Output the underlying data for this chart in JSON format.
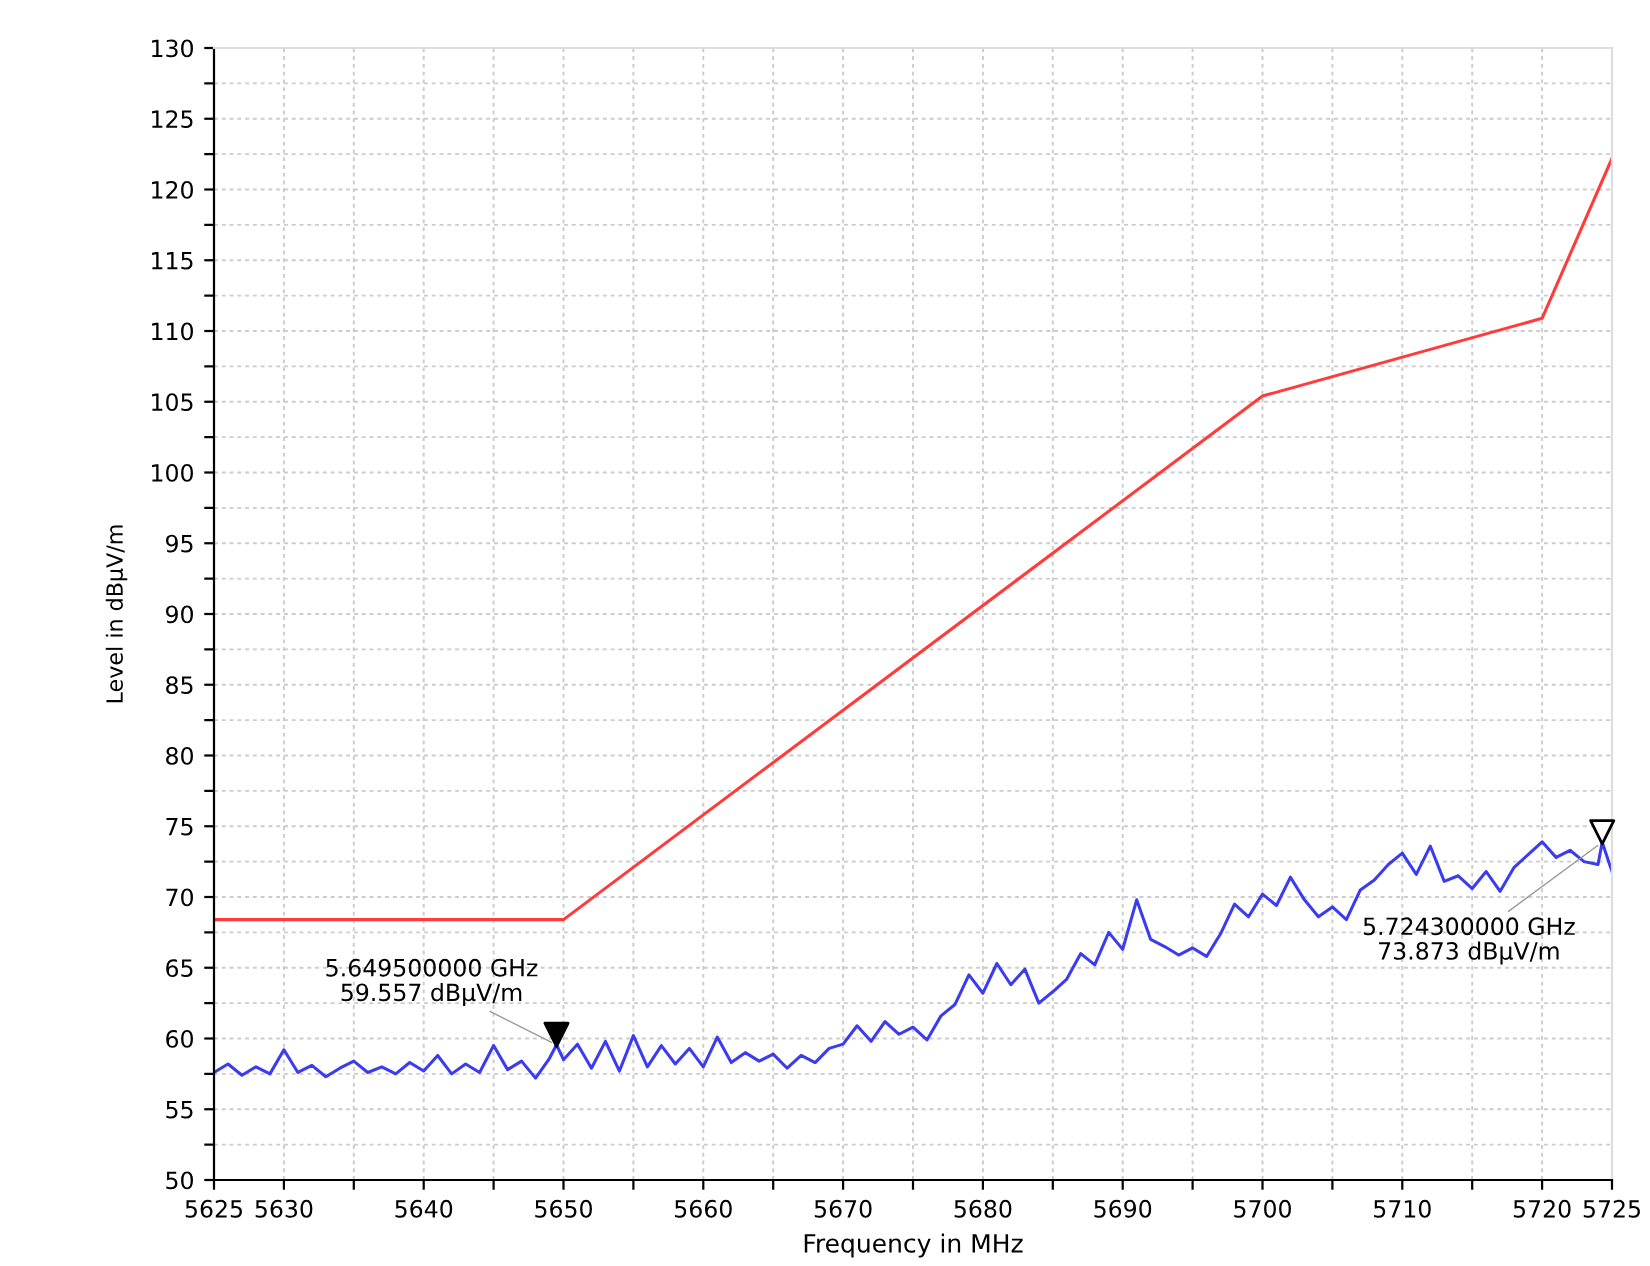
{
  "chart_data": {
    "type": "line",
    "xlabel": "Frequency in MHz",
    "ylabel": "Level in dBμV/m",
    "xlim": [
      5625,
      5725
    ],
    "ylim": [
      50,
      130
    ],
    "xticks": [
      5625,
      5630,
      {
        "value": 5635,
        "label": null
      },
      5640,
      {
        "value": 5645,
        "label": null
      },
      5650,
      {
        "value": 5655,
        "label": null
      },
      5660,
      {
        "value": 5665,
        "label": null
      },
      5670,
      {
        "value": 5675,
        "label": null
      },
      5680,
      {
        "value": 5685,
        "label": null
      },
      5690,
      {
        "value": 5695,
        "label": null
      },
      5700,
      {
        "value": 5705,
        "label": null
      },
      5710,
      {
        "value": 5715,
        "label": null
      },
      5720,
      5725
    ],
    "yticks": [
      50,
      {
        "value": 52.5,
        "label": null
      },
      55,
      {
        "value": 57.5,
        "label": null
      },
      60,
      {
        "value": 62.5,
        "label": null
      },
      65,
      {
        "value": 67.5,
        "label": null
      },
      70,
      {
        "value": 72.5,
        "label": null
      },
      75,
      {
        "value": 77.5,
        "label": null
      },
      80,
      {
        "value": 82.5,
        "label": null
      },
      85,
      {
        "value": 87.5,
        "label": null
      },
      90,
      {
        "value": 92.5,
        "label": null
      },
      95,
      {
        "value": 97.5,
        "label": null
      },
      100,
      {
        "value": 102.5,
        "label": null
      },
      105,
      {
        "value": 107.5,
        "label": null
      },
      110,
      {
        "value": 112.5,
        "label": null
      },
      115,
      {
        "value": 117.5,
        "label": null
      },
      120,
      {
        "value": 122.5,
        "label": null
      },
      125,
      {
        "value": 127.5,
        "label": null
      },
      130
    ],
    "grid": true,
    "marker": "none",
    "line_style": "solid",
    "series": [
      {
        "color": "#ff3b3b",
        "x": [
          5625,
          5650,
          5700,
          5720,
          5725
        ],
        "values": [
          68.4,
          68.4,
          105.4,
          110.9,
          122.2
        ]
      },
      {
        "color": "#3b3bf0",
        "x": [
          5625,
          5626,
          5627,
          5628,
          5629,
          5630,
          5631,
          5632,
          5633,
          5634,
          5635,
          5636,
          5637,
          5638,
          5639,
          5640,
          5641,
          5642,
          5643,
          5644,
          5645,
          5646,
          5647,
          5648,
          5649,
          5649.5,
          5650,
          5651,
          5652,
          5653,
          5654,
          5655,
          5656,
          5657,
          5658,
          5659,
          5660,
          5661,
          5662,
          5663,
          5664,
          5665,
          5666,
          5667,
          5668,
          5669,
          5670,
          5671,
          5672,
          5673,
          5674,
          5675,
          5676,
          5677,
          5678,
          5679,
          5680,
          5681,
          5682,
          5683,
          5684,
          5685,
          5686,
          5687,
          5688,
          5689,
          5690,
          5691,
          5692,
          5693,
          5694,
          5695,
          5696,
          5697,
          5698,
          5699,
          5700,
          5701,
          5702,
          5703,
          5704,
          5705,
          5706,
          5707,
          5708,
          5709,
          5710,
          5711,
          5712,
          5713,
          5714,
          5715,
          5716,
          5717,
          5718,
          5719,
          5720,
          5721,
          5722,
          5723,
          5724,
          5724.3,
          5725
        ],
        "values": [
          57.6,
          58.2,
          57.4,
          58.0,
          57.5,
          59.2,
          57.6,
          58.1,
          57.3,
          57.9,
          58.4,
          57.6,
          58.0,
          57.5,
          58.3,
          57.7,
          58.8,
          57.5,
          58.2,
          57.6,
          59.5,
          57.8,
          58.4,
          57.2,
          58.6,
          59.557,
          58.5,
          59.6,
          57.9,
          59.8,
          57.7,
          60.2,
          58.0,
          59.5,
          58.2,
          59.3,
          58.0,
          60.1,
          58.3,
          59.0,
          58.4,
          58.9,
          57.9,
          58.8,
          58.3,
          59.3,
          59.6,
          60.9,
          59.8,
          61.2,
          60.3,
          60.8,
          59.9,
          61.6,
          62.4,
          64.5,
          63.2,
          65.3,
          63.8,
          64.9,
          62.5,
          63.3,
          64.2,
          66.0,
          65.2,
          67.5,
          66.3,
          69.8,
          67.0,
          66.5,
          65.9,
          66.4,
          65.8,
          67.4,
          69.5,
          68.6,
          70.2,
          69.4,
          71.4,
          69.8,
          68.6,
          69.3,
          68.4,
          70.5,
          71.2,
          72.3,
          73.1,
          71.6,
          73.6,
          71.1,
          71.5,
          70.6,
          71.8,
          70.4,
          72.1,
          73.0,
          73.9,
          72.8,
          73.3,
          72.5,
          72.3,
          73.873,
          71.8
        ]
      }
    ],
    "annotations": [
      {
        "text": "5.649500000 GHz\n59.557 dBμV/m",
        "x": 5649.5,
        "y": 59.557
      },
      {
        "text": "5.724300000 GHz\n73.873 dBμV/m",
        "x": 5724.3,
        "y": 73.873
      }
    ]
  }
}
